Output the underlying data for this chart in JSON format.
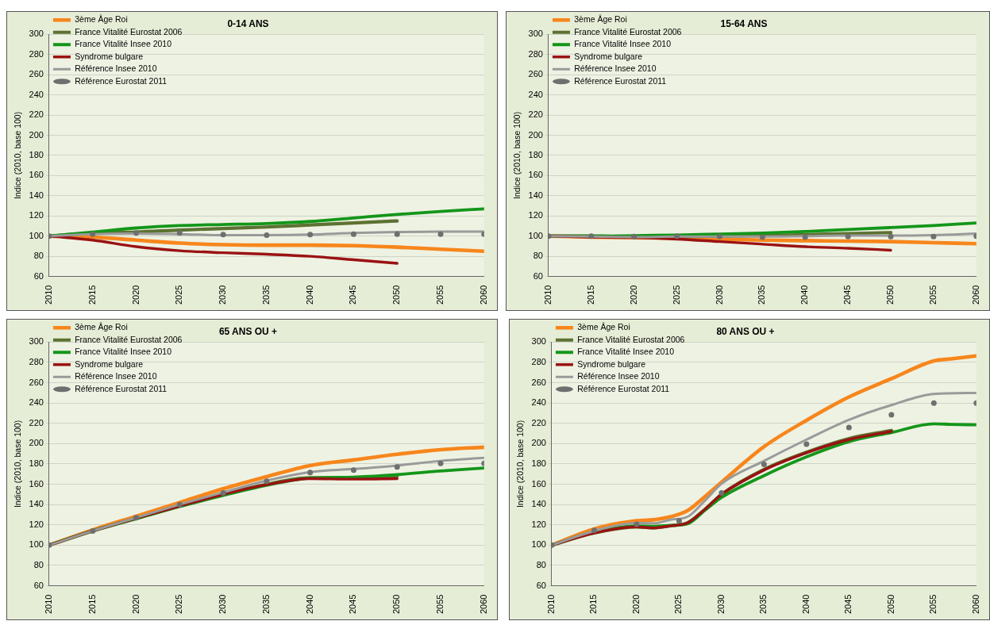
{
  "chart_data": [
    {
      "type": "line",
      "title": "0-14 ANS",
      "ylabel": "Indice (2010, base 100)",
      "xlim": [
        2010,
        2060
      ],
      "xticks": [
        2010,
        2015,
        2020,
        2025,
        2030,
        2035,
        2040,
        2045,
        2050,
        2055,
        2060
      ],
      "ylim": [
        60,
        300
      ],
      "yticks": [
        60,
        80,
        100,
        120,
        140,
        160,
        180,
        200,
        220,
        240,
        260,
        280,
        300
      ],
      "grid": "y",
      "legend": "top left",
      "series": [
        {
          "name": "3ème Âge Roi",
          "color": "#f7861c",
          "marker": "none",
          "x": [
            2010,
            2015,
            2020,
            2025,
            2030,
            2035,
            2040,
            2045,
            2050,
            2055,
            2060
          ],
          "values": [
            100,
            99,
            96,
            93,
            91.5,
            91,
            91,
            90.5,
            89,
            87,
            85
          ]
        },
        {
          "name": "France Vitalité Eurostat 2006",
          "color": "#5d7232",
          "marker": "none",
          "x": [
            2010,
            2015,
            2020,
            2025,
            2030,
            2035,
            2040,
            2045,
            2050
          ],
          "values": [
            100,
            103,
            104,
            106,
            107.5,
            109,
            111,
            113,
            115
          ]
        },
        {
          "name": "France Vitalité Insee 2010",
          "color": "#14961a",
          "marker": "none",
          "x": [
            2010,
            2015,
            2020,
            2025,
            2030,
            2035,
            2040,
            2045,
            2050,
            2055,
            2060
          ],
          "values": [
            100,
            104,
            108,
            110.5,
            111.5,
            112.5,
            114.5,
            118,
            121.5,
            124.5,
            127
          ]
        },
        {
          "name": "Syndrome bulgare",
          "color": "#9a1212",
          "marker": "none",
          "x": [
            2010,
            2015,
            2020,
            2025,
            2030,
            2035,
            2040,
            2045,
            2050
          ],
          "values": [
            100,
            96,
            89.5,
            85.5,
            83.5,
            82,
            80,
            76.5,
            73
          ]
        },
        {
          "name": "Référence Insee 2010",
          "color": "#9a9a9a",
          "marker": "none",
          "x": [
            2010,
            2015,
            2020,
            2025,
            2030,
            2035,
            2040,
            2045,
            2050,
            2055,
            2060
          ],
          "values": [
            100,
            102,
            102.5,
            102,
            101,
            101,
            101.5,
            103,
            104,
            104.5,
            104.5
          ]
        },
        {
          "name": "Référence Eurostat 2011",
          "color": "#6f6f6f",
          "type": "scatter",
          "marker": "circle",
          "x": [
            2010,
            2015,
            2020,
            2025,
            2030,
            2035,
            2040,
            2045,
            2050,
            2055,
            2060
          ],
          "values": [
            100,
            102,
            103,
            103,
            101.5,
            101,
            101.5,
            102,
            102,
            102,
            102
          ]
        }
      ]
    },
    {
      "type": "line",
      "title": "15-64 ANS",
      "ylabel": "Indice (2010, base 100)",
      "xlim": [
        2010,
        2060
      ],
      "xticks": [
        2010,
        2015,
        2020,
        2025,
        2030,
        2035,
        2040,
        2045,
        2050,
        2055,
        2060
      ],
      "ylim": [
        60,
        300
      ],
      "yticks": [
        60,
        80,
        100,
        120,
        140,
        160,
        180,
        200,
        220,
        240,
        260,
        280,
        300
      ],
      "grid": "y",
      "legend": "top left",
      "series": [
        {
          "name": "3ème Âge Roi",
          "color": "#f7861c",
          "marker": "none",
          "x": [
            2010,
            2015,
            2020,
            2025,
            2030,
            2035,
            2040,
            2045,
            2050,
            2055,
            2060
          ],
          "values": [
            100,
            99,
            98.5,
            98,
            97,
            96,
            95.5,
            95,
            94.5,
            93.5,
            92.5
          ]
        },
        {
          "name": "France Vitalité Eurostat 2006",
          "color": "#5d7232",
          "marker": "none",
          "x": [
            2010,
            2015,
            2020,
            2025,
            2030,
            2035,
            2040,
            2045,
            2050
          ],
          "values": [
            100,
            100,
            99.5,
            99.5,
            100,
            100.5,
            101.5,
            102.5,
            103.5
          ]
        },
        {
          "name": "France Vitalité Insee 2010",
          "color": "#14961a",
          "marker": "none",
          "x": [
            2010,
            2015,
            2020,
            2025,
            2030,
            2035,
            2040,
            2045,
            2050,
            2055,
            2060
          ],
          "values": [
            100,
            100,
            100.5,
            101,
            102,
            103,
            104.5,
            106.5,
            108.5,
            110.5,
            113
          ]
        },
        {
          "name": "Syndrome bulgare",
          "color": "#9a1212",
          "marker": "none",
          "x": [
            2010,
            2015,
            2020,
            2025,
            2030,
            2035,
            2040,
            2045,
            2050
          ],
          "values": [
            100,
            99,
            98.5,
            97,
            94.5,
            92,
            89.5,
            88,
            86
          ]
        },
        {
          "name": "Référence Insee 2010",
          "color": "#9a9a9a",
          "marker": "none",
          "x": [
            2010,
            2015,
            2020,
            2025,
            2030,
            2035,
            2040,
            2045,
            2050,
            2055,
            2060
          ],
          "values": [
            100,
            99.5,
            99,
            99.5,
            99.5,
            99.5,
            100,
            100.5,
            100.5,
            101,
            102.5
          ]
        },
        {
          "name": "Référence Eurostat 2011",
          "color": "#6f6f6f",
          "type": "scatter",
          "marker": "circle",
          "x": [
            2010,
            2015,
            2020,
            2025,
            2030,
            2035,
            2040,
            2045,
            2050,
            2055,
            2060
          ],
          "values": [
            100,
            100,
            99.5,
            100,
            99.5,
            99,
            99,
            99.5,
            99.5,
            99.5,
            100
          ]
        }
      ]
    },
    {
      "type": "line",
      "title": "65 ANS OU +",
      "ylabel": "Indice (2010, base 100)",
      "xlim": [
        2010,
        2060
      ],
      "xticks": [
        2010,
        2015,
        2020,
        2025,
        2030,
        2035,
        2040,
        2045,
        2050,
        2055,
        2060
      ],
      "ylim": [
        60,
        300
      ],
      "yticks": [
        60,
        80,
        100,
        120,
        140,
        160,
        180,
        200,
        220,
        240,
        260,
        280,
        300
      ],
      "grid": "y",
      "legend": "top left",
      "series": [
        {
          "name": "3ème Âge Roi",
          "color": "#f7861c",
          "marker": "none",
          "x": [
            2010,
            2015,
            2020,
            2025,
            2030,
            2035,
            2040,
            2045,
            2050,
            2055,
            2060
          ],
          "values": [
            100,
            115,
            128.5,
            142,
            155.5,
            167.5,
            178.5,
            184,
            189.5,
            194,
            196.5
          ]
        },
        {
          "name": "France Vitalité Eurostat 2006",
          "color": "#5d7232",
          "marker": "none",
          "x": [
            2010,
            2015,
            2020,
            2025,
            2030,
            2035,
            2040,
            2045,
            2050
          ],
          "values": [
            100,
            114,
            126.5,
            138.5,
            150,
            160,
            166.5,
            166.5,
            168
          ]
        },
        {
          "name": "France Vitalité Insee 2010",
          "color": "#14961a",
          "marker": "none",
          "x": [
            2010,
            2015,
            2020,
            2025,
            2030,
            2035,
            2040,
            2045,
            2050,
            2055,
            2060
          ],
          "values": [
            100,
            114,
            126,
            138,
            149,
            159,
            166,
            167,
            169.5,
            173,
            176
          ]
        },
        {
          "name": "Syndrome bulgare",
          "color": "#9a1212",
          "marker": "none",
          "x": [
            2010,
            2015,
            2020,
            2025,
            2030,
            2035,
            2040,
            2045,
            2050
          ],
          "values": [
            100,
            114,
            126.5,
            138.5,
            150,
            159.5,
            165.5,
            165,
            165.5
          ]
        },
        {
          "name": "Référence Insee 2010",
          "color": "#9a9a9a",
          "marker": "none",
          "x": [
            2010,
            2015,
            2020,
            2025,
            2030,
            2035,
            2040,
            2045,
            2050,
            2055,
            2060
          ],
          "values": [
            100,
            114,
            127,
            140,
            152,
            163.5,
            172,
            175,
            178.5,
            183,
            186
          ]
        },
        {
          "name": "Référence Eurostat 2011",
          "color": "#6f6f6f",
          "type": "scatter",
          "marker": "circle",
          "x": [
            2010,
            2015,
            2020,
            2025,
            2030,
            2035,
            2040,
            2045,
            2050,
            2055,
            2060
          ],
          "values": [
            100,
            114,
            127,
            140,
            151.5,
            163,
            171.5,
            174,
            177,
            180.5,
            180.5
          ]
        }
      ]
    },
    {
      "type": "line",
      "title": "80 ANS OU +",
      "ylabel": "Indice (2010, base 100)",
      "xlim": [
        2010,
        2060
      ],
      "xticks": [
        2010,
        2015,
        2020,
        2025,
        2030,
        2035,
        2040,
        2045,
        2050,
        2055,
        2060
      ],
      "ylim": [
        60,
        300
      ],
      "yticks": [
        60,
        80,
        100,
        120,
        140,
        160,
        180,
        200,
        220,
        240,
        260,
        280,
        300
      ],
      "grid": "y",
      "legend": "top left",
      "series": [
        {
          "name": "3ème Âge Roi",
          "color": "#f7861c",
          "marker": "none",
          "x": [
            2010,
            2015,
            2020,
            2022,
            2024,
            2026,
            2028,
            2030,
            2035,
            2040,
            2045,
            2050,
            2055,
            2057,
            2060
          ],
          "values": [
            100,
            116,
            124,
            125,
            128,
            134,
            147.5,
            162,
            197,
            223,
            246,
            264,
            281.5,
            283.5,
            286.5
          ]
        },
        {
          "name": "France Vitalité Eurostat 2006",
          "color": "#5d7232",
          "marker": "none",
          "x": [
            2010,
            2015,
            2020,
            2022,
            2024,
            2026,
            2028,
            2030,
            2035,
            2040,
            2045,
            2050
          ],
          "values": [
            100,
            112,
            118,
            117,
            119,
            122,
            135,
            150,
            174.5,
            191.5,
            205,
            213
          ]
        },
        {
          "name": "France Vitalité Insee 2010",
          "color": "#14961a",
          "marker": "none",
          "x": [
            2010,
            2015,
            2020,
            2022,
            2024,
            2026,
            2028,
            2030,
            2035,
            2040,
            2045,
            2050,
            2055,
            2057,
            2060
          ],
          "values": [
            100,
            113,
            119,
            118.5,
            119.5,
            121,
            134,
            147,
            168.5,
            187,
            202,
            211,
            219.5,
            219,
            218.5
          ]
        },
        {
          "name": "Syndrome bulgare",
          "color": "#9a1212",
          "marker": "none",
          "x": [
            2010,
            2015,
            2020,
            2022,
            2024,
            2026,
            2028,
            2030,
            2035,
            2040,
            2045,
            2050
          ],
          "values": [
            100,
            112,
            118,
            117,
            119,
            122,
            135,
            150,
            174,
            191,
            204,
            212
          ]
        },
        {
          "name": "Référence Insee 2010",
          "color": "#9a9a9a",
          "marker": "none",
          "x": [
            2010,
            2015,
            2020,
            2022,
            2024,
            2026,
            2028,
            2030,
            2035,
            2040,
            2045,
            2050,
            2055,
            2060
          ],
          "values": [
            100,
            114,
            122,
            121.5,
            125,
            128,
            143.5,
            160.5,
            183,
            204,
            223.5,
            238,
            249,
            250
          ]
        },
        {
          "name": "Référence Eurostat 2011",
          "color": "#6f6f6f",
          "type": "scatter",
          "marker": "circle",
          "x": [
            2010,
            2015,
            2020,
            2025,
            2030,
            2035,
            2040,
            2045,
            2050,
            2055,
            2060
          ],
          "values": [
            100,
            114.5,
            120.5,
            124,
            151.5,
            179.5,
            199.5,
            216,
            228.5,
            240,
            240
          ]
        }
      ]
    }
  ]
}
